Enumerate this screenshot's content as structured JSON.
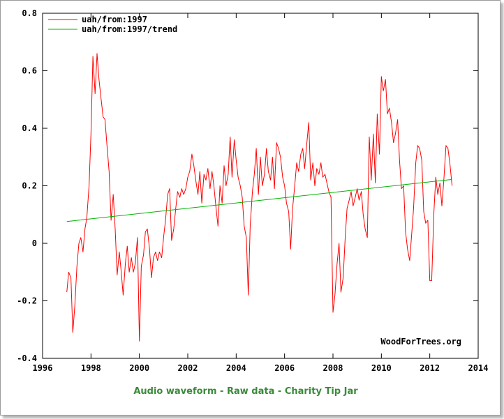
{
  "chart_data": {
    "type": "line",
    "xlim": [
      1996,
      2014
    ],
    "ylim": [
      -0.4,
      0.8
    ],
    "x_ticks": [
      {
        "value": 1996,
        "label": "1996"
      },
      {
        "value": 1998,
        "label": "1998"
      },
      {
        "value": 2000,
        "label": "2000"
      },
      {
        "value": 2002,
        "label": "2002"
      },
      {
        "value": 2004,
        "label": "2004"
      },
      {
        "value": 2006,
        "label": "2006"
      },
      {
        "value": 2008,
        "label": "2008"
      },
      {
        "value": 2010,
        "label": "2010"
      },
      {
        "value": 2012,
        "label": "2012"
      },
      {
        "value": 2014,
        "label": "2014"
      }
    ],
    "y_ticks": [
      {
        "value": -0.4,
        "label": "-0.4"
      },
      {
        "value": -0.2,
        "label": "-0.2"
      },
      {
        "value": 0,
        "label": "0"
      },
      {
        "value": 0.2,
        "label": "0.2"
      },
      {
        "value": 0.4,
        "label": "0.4"
      },
      {
        "value": 0.6,
        "label": "0.6"
      },
      {
        "value": 0.8,
        "label": "0.8"
      }
    ],
    "grid": false,
    "legend_position": "top-left",
    "watermark": "WoodForTrees.org",
    "series": [
      {
        "name": "uah/from:1997",
        "color": "#ff0000",
        "points": [
          [
            1997.0,
            -0.17
          ],
          [
            1997.08,
            -0.1
          ],
          [
            1997.17,
            -0.12
          ],
          [
            1997.25,
            -0.31
          ],
          [
            1997.33,
            -0.22
          ],
          [
            1997.42,
            -0.08
          ],
          [
            1997.5,
            0.0
          ],
          [
            1997.58,
            0.02
          ],
          [
            1997.67,
            -0.03
          ],
          [
            1997.75,
            0.05
          ],
          [
            1997.83,
            0.09
          ],
          [
            1997.92,
            0.2
          ],
          [
            1998.0,
            0.38
          ],
          [
            1998.08,
            0.65
          ],
          [
            1998.17,
            0.52
          ],
          [
            1998.25,
            0.66
          ],
          [
            1998.33,
            0.57
          ],
          [
            1998.42,
            0.5
          ],
          [
            1998.5,
            0.44
          ],
          [
            1998.58,
            0.43
          ],
          [
            1998.67,
            0.33
          ],
          [
            1998.75,
            0.25
          ],
          [
            1998.83,
            0.08
          ],
          [
            1998.92,
            0.17
          ],
          [
            1999.0,
            0.05
          ],
          [
            1999.08,
            -0.11
          ],
          [
            1999.17,
            -0.03
          ],
          [
            1999.25,
            -0.1
          ],
          [
            1999.33,
            -0.18
          ],
          [
            1999.42,
            -0.07
          ],
          [
            1999.5,
            -0.01
          ],
          [
            1999.58,
            -0.1
          ],
          [
            1999.67,
            -0.05
          ],
          [
            1999.75,
            -0.1
          ],
          [
            1999.83,
            -0.07
          ],
          [
            1999.92,
            0.02
          ],
          [
            2000.0,
            -0.34
          ],
          [
            2000.08,
            -0.08
          ],
          [
            2000.17,
            -0.04
          ],
          [
            2000.25,
            0.04
          ],
          [
            2000.33,
            0.05
          ],
          [
            2000.42,
            -0.02
          ],
          [
            2000.5,
            -0.12
          ],
          [
            2000.58,
            -0.05
          ],
          [
            2000.67,
            -0.03
          ],
          [
            2000.75,
            -0.06
          ],
          [
            2000.83,
            -0.03
          ],
          [
            2000.92,
            -0.05
          ],
          [
            2001.0,
            0.02
          ],
          [
            2001.08,
            0.08
          ],
          [
            2001.17,
            0.17
          ],
          [
            2001.25,
            0.19
          ],
          [
            2001.33,
            0.01
          ],
          [
            2001.42,
            0.05
          ],
          [
            2001.5,
            0.12
          ],
          [
            2001.58,
            0.18
          ],
          [
            2001.67,
            0.16
          ],
          [
            2001.75,
            0.19
          ],
          [
            2001.83,
            0.17
          ],
          [
            2001.92,
            0.19
          ],
          [
            2002.0,
            0.23
          ],
          [
            2002.08,
            0.25
          ],
          [
            2002.17,
            0.31
          ],
          [
            2002.25,
            0.27
          ],
          [
            2002.33,
            0.22
          ],
          [
            2002.42,
            0.17
          ],
          [
            2002.5,
            0.25
          ],
          [
            2002.58,
            0.14
          ],
          [
            2002.67,
            0.24
          ],
          [
            2002.75,
            0.22
          ],
          [
            2002.83,
            0.26
          ],
          [
            2002.92,
            0.19
          ],
          [
            2003.0,
            0.25
          ],
          [
            2003.08,
            0.2
          ],
          [
            2003.17,
            0.12
          ],
          [
            2003.25,
            0.06
          ],
          [
            2003.33,
            0.2
          ],
          [
            2003.42,
            0.14
          ],
          [
            2003.5,
            0.27
          ],
          [
            2003.58,
            0.2
          ],
          [
            2003.67,
            0.24
          ],
          [
            2003.75,
            0.37
          ],
          [
            2003.83,
            0.23
          ],
          [
            2003.92,
            0.36
          ],
          [
            2004.0,
            0.29
          ],
          [
            2004.08,
            0.23
          ],
          [
            2004.17,
            0.2
          ],
          [
            2004.25,
            0.16
          ],
          [
            2004.33,
            0.06
          ],
          [
            2004.42,
            0.02
          ],
          [
            2004.5,
            -0.18
          ],
          [
            2004.58,
            0.06
          ],
          [
            2004.67,
            0.18
          ],
          [
            2004.75,
            0.24
          ],
          [
            2004.83,
            0.33
          ],
          [
            2004.92,
            0.17
          ],
          [
            2005.0,
            0.3
          ],
          [
            2005.08,
            0.2
          ],
          [
            2005.17,
            0.24
          ],
          [
            2005.25,
            0.33
          ],
          [
            2005.33,
            0.25
          ],
          [
            2005.42,
            0.22
          ],
          [
            2005.5,
            0.3
          ],
          [
            2005.58,
            0.19
          ],
          [
            2005.67,
            0.35
          ],
          [
            2005.75,
            0.33
          ],
          [
            2005.83,
            0.3
          ],
          [
            2005.92,
            0.23
          ],
          [
            2006.0,
            0.2
          ],
          [
            2006.08,
            0.14
          ],
          [
            2006.17,
            0.11
          ],
          [
            2006.25,
            -0.02
          ],
          [
            2006.33,
            0.12
          ],
          [
            2006.42,
            0.2
          ],
          [
            2006.5,
            0.28
          ],
          [
            2006.58,
            0.25
          ],
          [
            2006.67,
            0.31
          ],
          [
            2006.75,
            0.33
          ],
          [
            2006.83,
            0.26
          ],
          [
            2006.92,
            0.35
          ],
          [
            2007.0,
            0.42
          ],
          [
            2007.08,
            0.22
          ],
          [
            2007.17,
            0.28
          ],
          [
            2007.25,
            0.2
          ],
          [
            2007.33,
            0.26
          ],
          [
            2007.42,
            0.24
          ],
          [
            2007.5,
            0.28
          ],
          [
            2007.58,
            0.23
          ],
          [
            2007.67,
            0.24
          ],
          [
            2007.75,
            0.21
          ],
          [
            2007.83,
            0.18
          ],
          [
            2007.92,
            0.16
          ],
          [
            2008.0,
            -0.24
          ],
          [
            2008.08,
            -0.18
          ],
          [
            2008.17,
            -0.07
          ],
          [
            2008.25,
            0.0
          ],
          [
            2008.33,
            -0.17
          ],
          [
            2008.42,
            -0.12
          ],
          [
            2008.5,
            0.01
          ],
          [
            2008.58,
            0.12
          ],
          [
            2008.67,
            0.15
          ],
          [
            2008.75,
            0.18
          ],
          [
            2008.83,
            0.13
          ],
          [
            2008.92,
            0.16
          ],
          [
            2009.0,
            0.19
          ],
          [
            2009.08,
            0.15
          ],
          [
            2009.17,
            0.18
          ],
          [
            2009.25,
            0.1
          ],
          [
            2009.33,
            0.05
          ],
          [
            2009.42,
            0.02
          ],
          [
            2009.5,
            0.37
          ],
          [
            2009.58,
            0.22
          ],
          [
            2009.67,
            0.38
          ],
          [
            2009.75,
            0.21
          ],
          [
            2009.83,
            0.45
          ],
          [
            2009.92,
            0.31
          ],
          [
            2010.0,
            0.58
          ],
          [
            2010.08,
            0.53
          ],
          [
            2010.17,
            0.57
          ],
          [
            2010.25,
            0.45
          ],
          [
            2010.33,
            0.47
          ],
          [
            2010.42,
            0.42
          ],
          [
            2010.5,
            0.35
          ],
          [
            2010.58,
            0.38
          ],
          [
            2010.67,
            0.43
          ],
          [
            2010.75,
            0.29
          ],
          [
            2010.83,
            0.19
          ],
          [
            2010.92,
            0.2
          ],
          [
            2011.0,
            0.04
          ],
          [
            2011.08,
            -0.02
          ],
          [
            2011.17,
            -0.06
          ],
          [
            2011.25,
            0.03
          ],
          [
            2011.33,
            0.12
          ],
          [
            2011.42,
            0.28
          ],
          [
            2011.5,
            0.34
          ],
          [
            2011.58,
            0.33
          ],
          [
            2011.67,
            0.29
          ],
          [
            2011.75,
            0.11
          ],
          [
            2011.83,
            0.07
          ],
          [
            2011.92,
            0.08
          ],
          [
            2012.0,
            -0.13
          ],
          [
            2012.08,
            -0.13
          ],
          [
            2012.17,
            0.11
          ],
          [
            2012.25,
            0.23
          ],
          [
            2012.33,
            0.17
          ],
          [
            2012.42,
            0.21
          ],
          [
            2012.5,
            0.13
          ],
          [
            2012.58,
            0.22
          ],
          [
            2012.67,
            0.34
          ],
          [
            2012.75,
            0.33
          ],
          [
            2012.83,
            0.28
          ],
          [
            2012.92,
            0.2
          ]
        ]
      },
      {
        "name": "uah/from:1997/trend",
        "color": "#00b400",
        "points": [
          [
            1997.0,
            0.076
          ],
          [
            2012.92,
            0.222
          ]
        ]
      }
    ]
  },
  "footer": {
    "items": [
      "Audio waveform",
      "Raw data",
      "Charity Tip Jar"
    ],
    "separator": " - "
  }
}
